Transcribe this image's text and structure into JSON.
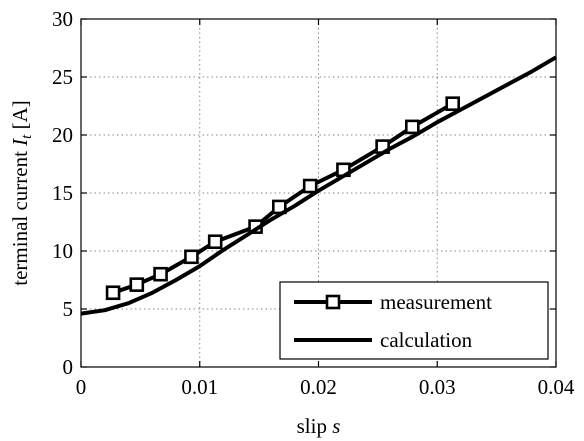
{
  "chart_data": {
    "type": "line",
    "xlabel": "slip",
    "xlabel_symbol": "s",
    "ylabel": "terminal current",
    "ylabel_symbol": "I",
    "ylabel_subscript": "t",
    "ylabel_unit": "[A]",
    "xlim": [
      0,
      0.04
    ],
    "ylim": [
      0,
      30
    ],
    "x_ticks": [
      0,
      0.01,
      0.02,
      0.03,
      0.04
    ],
    "x_tick_labels": [
      "0",
      "0.01",
      "0.02",
      "0.03",
      "0.04"
    ],
    "y_ticks": [
      0,
      5,
      10,
      15,
      20,
      25,
      30
    ],
    "y_tick_labels": [
      "0",
      "5",
      "10",
      "15",
      "20",
      "25",
      "30"
    ],
    "grid": true,
    "legend_position": "bottom-right",
    "series": [
      {
        "name": "measurement",
        "marker": "square",
        "x": [
          0.0027,
          0.0047,
          0.0067,
          0.0093,
          0.0113,
          0.0147,
          0.0167,
          0.0193,
          0.0221,
          0.0254,
          0.0279,
          0.0313
        ],
        "y": [
          6.4,
          7.1,
          8.0,
          9.5,
          10.8,
          12.1,
          13.8,
          15.6,
          17.0,
          19.0,
          20.7,
          22.7
        ]
      },
      {
        "name": "calculation",
        "marker": "none",
        "x": [
          0,
          0.002,
          0.004,
          0.006,
          0.008,
          0.01,
          0.012,
          0.014,
          0.016,
          0.018,
          0.02,
          0.022,
          0.024,
          0.026,
          0.028,
          0.03,
          0.032,
          0.034,
          0.036,
          0.038,
          0.04
        ],
        "y": [
          4.6,
          4.9,
          5.5,
          6.4,
          7.5,
          8.7,
          10.1,
          11.4,
          12.7,
          13.9,
          15.2,
          16.4,
          17.6,
          18.8,
          19.9,
          21.1,
          22.2,
          23.3,
          24.4,
          25.5,
          26.7
        ]
      }
    ]
  }
}
